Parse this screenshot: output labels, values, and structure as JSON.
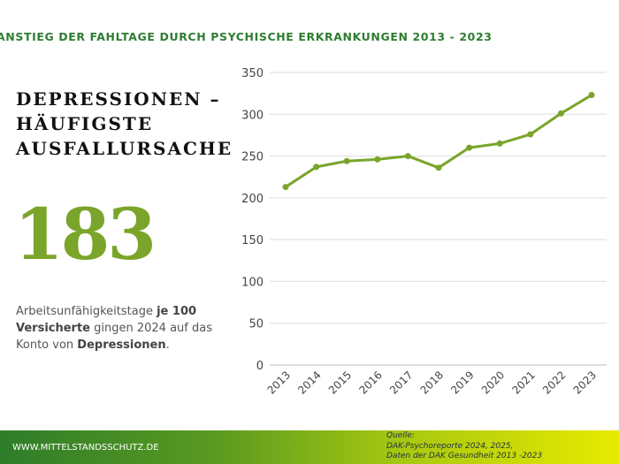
{
  "header": {
    "title": "ANSTIEG DER FAHLTAGE DURCH PSYCHISCHE ERKRANKUNGEN 2013 - 2023"
  },
  "left": {
    "headline": [
      "DEPRESSIONEN –",
      "HÄUFIGSTE",
      "AUSFALLURSACHE"
    ],
    "big_number": "183",
    "desc": {
      "p1": "Arbeitsunfähigkeitstage ",
      "b1": "je 100 Versicherte",
      "p2": " gingen 2024 auf das Konto von ",
      "b2": "Depressionen",
      "p3": "."
    }
  },
  "footer": {
    "site": "WWW.MITTELSTANDSSCHUTZ.DE",
    "source_label": "Quelle:",
    "source_lines": [
      "DAK-Psychoreporte 2024, 2025,",
      "Daten der DAK Gesundheit 2013 -2023"
    ]
  },
  "colors": {
    "line": "#7aa52a",
    "title": "#2f7d32",
    "grid": "#dddddd"
  },
  "chart_data": {
    "type": "line",
    "categories": [
      "2013",
      "2014",
      "2015",
      "2016",
      "2017",
      "2018",
      "2019",
      "2020",
      "2021",
      "2022",
      "2023"
    ],
    "values": [
      213,
      237,
      244,
      246,
      250,
      236,
      260,
      265,
      276,
      301,
      323
    ],
    "ylim": [
      0,
      350
    ],
    "yticks": [
      0,
      50,
      100,
      150,
      200,
      250,
      300,
      350
    ],
    "grid": true,
    "xlabel": "",
    "ylabel": "",
    "title": ""
  }
}
